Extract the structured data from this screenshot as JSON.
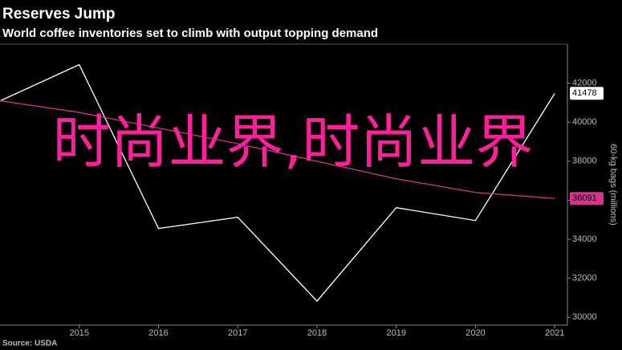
{
  "chart_data": {
    "type": "line",
    "title": "Reserves Jump",
    "subtitle": "World coffee inventories set to climb with output topping demand",
    "y_axis_label": "60-kg bags (millions)",
    "source": "Source: USDA",
    "overlay_text": "时尚业界,时尚业界",
    "x": [
      2014,
      2015,
      2016,
      2017,
      2018,
      2019,
      2020,
      2021
    ],
    "xlim": [
      2014,
      2021.16
    ],
    "xticks": [
      2015,
      2016,
      2017,
      2018,
      2019,
      2020,
      2021
    ],
    "ylim": [
      29600,
      44000
    ],
    "yticks": [
      30000,
      32000,
      34000,
      36000,
      38000,
      40000,
      42000
    ],
    "y_axis_side": "right",
    "grid": false,
    "series": [
      {
        "color": "#ffffff",
        "values": [
          41090,
          42950,
          34550,
          35130,
          30830,
          35620,
          34960,
          41478
        ]
      },
      {
        "color": "#d6338c",
        "values": [
          41100,
          40500,
          39700,
          38900,
          38000,
          37100,
          36400,
          36091
        ]
      }
    ]
  }
}
